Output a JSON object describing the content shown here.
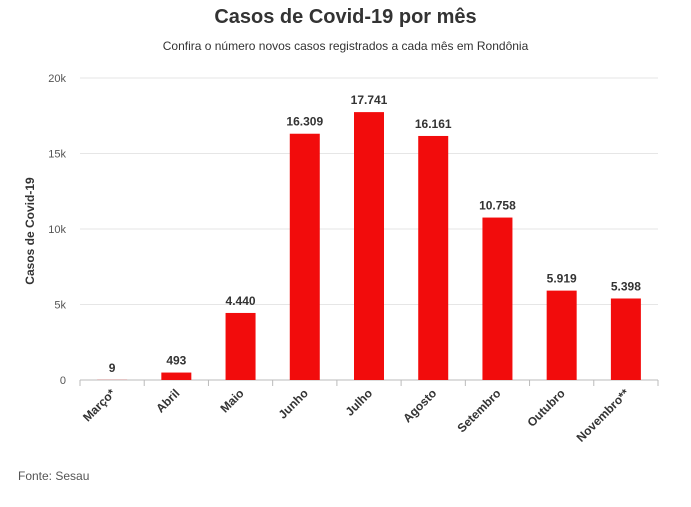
{
  "chart_data": {
    "type": "bar",
    "title": "Casos de Covid-19 por mês",
    "subtitle": "Confira o número novos casos registrados a cada mês em Rondônia",
    "ylabel": "Casos de Covid-19",
    "xlabel": "",
    "categories": [
      "Março*",
      "Abril",
      "Maio",
      "Junho",
      "Julho",
      "Agosto",
      "Setembro",
      "Outubro",
      "Novembro**"
    ],
    "values": [
      9,
      493,
      4440,
      16309,
      17741,
      16161,
      10758,
      5919,
      5398
    ],
    "data_labels": [
      "9",
      "493",
      "4.440",
      "16.309",
      "17.741",
      "16.161",
      "10.758",
      "5.919",
      "5.398"
    ],
    "ylim": [
      0,
      20000
    ],
    "yticks": [
      0,
      5000,
      10000,
      15000,
      20000
    ],
    "ytick_labels": [
      "0",
      "5k",
      "10k",
      "15k",
      "20k"
    ],
    "grid": true,
    "bar_color": "#f20c0c",
    "source": "Fonte: Sesau"
  }
}
